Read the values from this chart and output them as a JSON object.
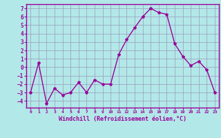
{
  "x": [
    0,
    1,
    2,
    3,
    4,
    5,
    6,
    7,
    8,
    9,
    10,
    11,
    12,
    13,
    14,
    15,
    16,
    17,
    18,
    19,
    20,
    21,
    22,
    23
  ],
  "y": [
    -3,
    0.5,
    -4.3,
    -2.5,
    -3.3,
    -3.0,
    -1.8,
    -3.0,
    -1.5,
    -2.0,
    -2.0,
    1.5,
    3.3,
    4.7,
    6.0,
    7.0,
    6.5,
    6.3,
    2.8,
    1.3,
    0.2,
    0.7,
    -0.3,
    -3.0
  ],
  "color": "#990099",
  "bg_color": "#b3e8e8",
  "grid_color": "#9999bb",
  "xlabel": "Windchill (Refroidissement éolien,°C)",
  "ylim": [
    -4.8,
    7.5
  ],
  "xlim": [
    -0.5,
    23.5
  ],
  "yticks": [
    -4,
    -3,
    -2,
    -1,
    0,
    1,
    2,
    3,
    4,
    5,
    6,
    7
  ],
  "xticks": [
    0,
    1,
    2,
    3,
    4,
    5,
    6,
    7,
    8,
    9,
    10,
    11,
    12,
    13,
    14,
    15,
    16,
    17,
    18,
    19,
    20,
    21,
    22,
    23
  ],
  "marker": "*",
  "markersize": 3,
  "linewidth": 1.0
}
